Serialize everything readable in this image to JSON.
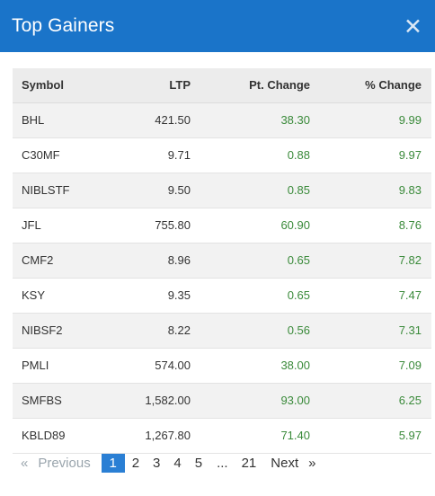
{
  "header": {
    "title": "Top Gainers",
    "close_icon": "close-icon"
  },
  "table": {
    "columns": [
      "Symbol",
      "LTP",
      "Pt. Change",
      "% Change"
    ],
    "rows": [
      {
        "symbol": "BHL",
        "ltp": "421.50",
        "pt_change": "38.30",
        "pct_change": "9.99"
      },
      {
        "symbol": "C30MF",
        "ltp": "9.71",
        "pt_change": "0.88",
        "pct_change": "9.97"
      },
      {
        "symbol": "NIBLSTF",
        "ltp": "9.50",
        "pt_change": "0.85",
        "pct_change": "9.83"
      },
      {
        "symbol": "JFL",
        "ltp": "755.80",
        "pt_change": "60.90",
        "pct_change": "8.76"
      },
      {
        "symbol": "CMF2",
        "ltp": "8.96",
        "pt_change": "0.65",
        "pct_change": "7.82"
      },
      {
        "symbol": "KSY",
        "ltp": "9.35",
        "pt_change": "0.65",
        "pct_change": "7.47"
      },
      {
        "symbol": "NIBSF2",
        "ltp": "8.22",
        "pt_change": "0.56",
        "pct_change": "7.31"
      },
      {
        "symbol": "PMLI",
        "ltp": "574.00",
        "pt_change": "38.00",
        "pct_change": "7.09"
      },
      {
        "symbol": "SMFBS",
        "ltp": "1,582.00",
        "pt_change": "93.00",
        "pct_change": "6.25"
      },
      {
        "symbol": "KBLD89",
        "ltp": "1,267.80",
        "pt_change": "71.40",
        "pct_change": "5.97"
      }
    ]
  },
  "pagination": {
    "prev_arrow": "«",
    "prev_label": "Previous",
    "pages": [
      "1",
      "2",
      "3",
      "4",
      "5"
    ],
    "ellipsis": "...",
    "last_page": "21",
    "next_label": "Next",
    "next_arrow": "»",
    "current_page": "1"
  },
  "colors": {
    "header_bg": "#1a74c9",
    "positive": "#3a8a3a",
    "active_page": "#2a7fd4"
  }
}
